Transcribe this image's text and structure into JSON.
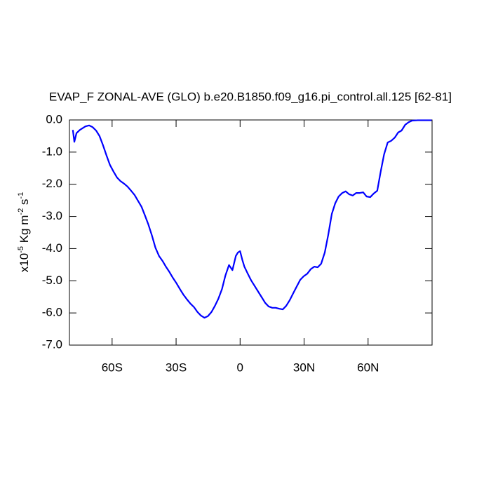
{
  "chart_data": {
    "type": "line",
    "title": "EVAP_F ZONAL-AVE (GLO) b.e20.B1850.f09_g16.pi_control.all.125 [62-81]",
    "ylabel_parts": [
      "x10",
      "-5",
      " Kg m",
      "-2",
      " s",
      "-1"
    ],
    "x": [
      -78.4,
      -77.7,
      -76.7,
      -75.1,
      -72.5,
      -70.8,
      -69.2,
      -67.5,
      -65.9,
      -64.3,
      -62.6,
      -61.0,
      -59.3,
      -57.7,
      -56.1,
      -54.4,
      -52.8,
      -51.1,
      -49.5,
      -47.9,
      -46.2,
      -44.6,
      -43.0,
      -41.3,
      -39.7,
      -38.0,
      -36.4,
      -34.8,
      -33.1,
      -31.5,
      -29.8,
      -28.2,
      -26.6,
      -24.9,
      -23.3,
      -21.6,
      -20.0,
      -18.4,
      -16.7,
      -15.1,
      -13.4,
      -11.8,
      -10.2,
      -8.5,
      -6.9,
      -5.2,
      -3.6,
      -2.0,
      -1.0,
      0,
      1.0,
      2.0,
      3.6,
      5.2,
      6.9,
      8.5,
      10.2,
      11.8,
      13.4,
      15.1,
      16.7,
      18.4,
      20.0,
      21.6,
      23.3,
      24.9,
      26.6,
      28.2,
      29.8,
      31.5,
      33.1,
      34.8,
      36.4,
      38.0,
      39.7,
      41.3,
      43.0,
      44.6,
      46.2,
      47.9,
      49.5,
      51.1,
      52.8,
      54.4,
      56.1,
      57.7,
      59.3,
      61.0,
      62.6,
      64.3,
      65.9,
      67.5,
      69.2,
      70.8,
      72.5,
      74.1,
      75.7,
      77.4,
      79.0,
      80.7,
      83.3,
      89.8
    ],
    "series": [
      {
        "color": "#0000ff",
        "values": [
          -0.31,
          -0.68,
          -0.41,
          -0.31,
          -0.2,
          -0.17,
          -0.22,
          -0.33,
          -0.5,
          -0.78,
          -1.11,
          -1.4,
          -1.61,
          -1.79,
          -1.9,
          -1.98,
          -2.07,
          -2.2,
          -2.33,
          -2.51,
          -2.7,
          -2.97,
          -3.25,
          -3.6,
          -3.97,
          -4.23,
          -4.38,
          -4.56,
          -4.73,
          -4.91,
          -5.08,
          -5.26,
          -5.43,
          -5.58,
          -5.71,
          -5.82,
          -5.97,
          -6.08,
          -6.15,
          -6.1,
          -5.97,
          -5.78,
          -5.56,
          -5.26,
          -4.84,
          -4.51,
          -4.67,
          -4.23,
          -4.12,
          -4.08,
          -4.34,
          -4.56,
          -4.78,
          -4.99,
          -5.17,
          -5.34,
          -5.52,
          -5.69,
          -5.8,
          -5.84,
          -5.84,
          -5.87,
          -5.89,
          -5.78,
          -5.6,
          -5.39,
          -5.17,
          -4.97,
          -4.86,
          -4.78,
          -4.64,
          -4.56,
          -4.58,
          -4.47,
          -4.12,
          -3.58,
          -2.92,
          -2.59,
          -2.38,
          -2.27,
          -2.22,
          -2.31,
          -2.35,
          -2.27,
          -2.27,
          -2.25,
          -2.38,
          -2.4,
          -2.29,
          -2.2,
          -1.61,
          -1.07,
          -0.7,
          -0.65,
          -0.55,
          -0.39,
          -0.33,
          -0.15,
          -0.07,
          -0.02,
          -0.01,
          -0.01
        ]
      }
    ],
    "xlim": [
      -80,
      90
    ],
    "xticks": [
      {
        "value": -60,
        "label": "60S"
      },
      {
        "value": -30,
        "label": "30S"
      },
      0,
      {
        "value": 30,
        "label": "30N"
      },
      {
        "value": 60,
        "label": "60N"
      }
    ],
    "ylim": [
      -7,
      0
    ],
    "yticks": [
      {
        "value": 0,
        "label": "0.0"
      },
      {
        "value": -1,
        "label": "-1.0"
      },
      {
        "value": -2,
        "label": "-2.0"
      },
      {
        "value": -3,
        "label": "-3.0"
      },
      {
        "value": -4,
        "label": "-4.0"
      },
      {
        "value": -5,
        "label": "-5.0"
      },
      {
        "value": -6,
        "label": "-6.0"
      },
      {
        "value": -7,
        "label": "-7.0"
      }
    ]
  }
}
